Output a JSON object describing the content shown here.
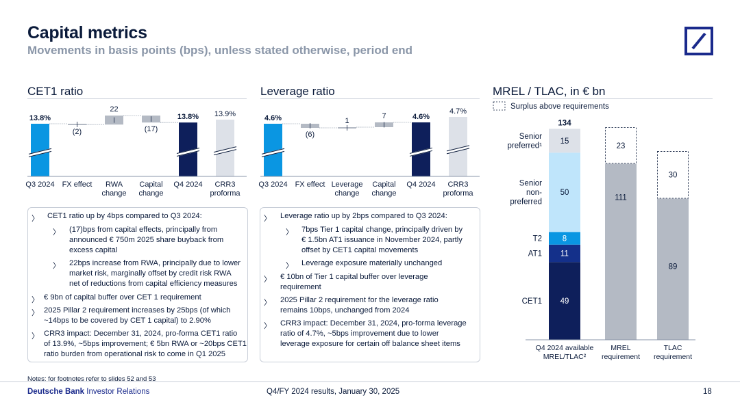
{
  "header": {
    "title": "Capital metrics",
    "subtitle": "Movements in basis points (bps), unless stated otherwise, period end"
  },
  "colors": {
    "dark_navy": "#0e1f5b",
    "bright_blue": "#0a96e2",
    "light_blue": "#bfe5fb",
    "gray": "#b4bac4",
    "light_gray": "#dde1e8"
  },
  "sections": {
    "cet1_title": "CET1 ratio",
    "leverage_title": "Leverage ratio",
    "mrel_title": "MREL / TLAC, in € bn"
  },
  "chart_data": [
    {
      "id": "cet1",
      "type": "bar",
      "subtype": "waterfall",
      "title": "CET1 ratio",
      "categories": [
        "Q3 2024",
        "FX effect",
        "RWA change",
        "Capital change",
        "Q4 2024",
        "CRR3 proforma"
      ],
      "category_lines": [
        [
          "Q3 2024"
        ],
        [
          "FX effect"
        ],
        [
          "RWA",
          "change"
        ],
        [
          "Capital",
          "change"
        ],
        [
          "Q4 2024"
        ],
        [
          "CRR3",
          "proforma"
        ]
      ],
      "values_bps": [
        1380,
        -2,
        22,
        -17,
        1380,
        1390
      ],
      "labels": [
        "13.8%",
        "(2)",
        "22",
        "(17)",
        "13.8%",
        "13.9%"
      ],
      "kinds": [
        "total",
        "delta",
        "delta",
        "delta",
        "total",
        "proforma"
      ]
    },
    {
      "id": "leverage",
      "type": "bar",
      "subtype": "waterfall",
      "title": "Leverage ratio",
      "categories": [
        "Q3 2024",
        "FX effect",
        "Leverage change",
        "Capital change",
        "Q4 2024",
        "CRR3 proforma"
      ],
      "category_lines": [
        [
          "Q3 2024"
        ],
        [
          "FX effect"
        ],
        [
          "Leverage",
          "change"
        ],
        [
          "Capital",
          "change"
        ],
        [
          "Q4 2024"
        ],
        [
          "CRR3",
          "proforma"
        ]
      ],
      "values_bps": [
        460,
        -6,
        1,
        7,
        460,
        470
      ],
      "labels": [
        "4.6%",
        "(6)",
        "1",
        "7",
        "4.6%",
        "4.7%"
      ],
      "kinds": [
        "total",
        "delta",
        "delta",
        "delta",
        "total",
        "proforma"
      ]
    },
    {
      "id": "mrel",
      "type": "bar",
      "subtype": "stacked",
      "title": "MREL / TLAC, in € bn",
      "legend": "Surplus above requirements",
      "categories": [
        "Q4 2024 available MREL/TLAC²",
        "MREL requirement",
        "TLAC requirement"
      ],
      "category_lines": [
        [
          "Q4 2024 available",
          "MREL/TLAC²"
        ],
        [
          "MREL",
          "requirement"
        ],
        [
          "TLAC",
          "requirement"
        ]
      ],
      "total_label": "134",
      "series": [
        {
          "name": "CET1",
          "values": [
            49,
            null,
            null
          ]
        },
        {
          "name": "AT1",
          "values": [
            11,
            null,
            null
          ]
        },
        {
          "name": "T2",
          "values": [
            8,
            null,
            null
          ]
        },
        {
          "name": "Senior non-preferred",
          "values": [
            50,
            null,
            null
          ]
        },
        {
          "name": "Senior preferred¹",
          "values": [
            15,
            null,
            null
          ]
        },
        {
          "name": "Requirement",
          "values": [
            null,
            111,
            89
          ]
        },
        {
          "name": "Surplus above requirements",
          "values": [
            null,
            23,
            30
          ]
        }
      ],
      "row_labels": [
        [
          "CET1"
        ],
        [
          "AT1"
        ],
        [
          "T2"
        ],
        [
          "Senior",
          "non-",
          "preferred"
        ],
        [
          "Senior",
          "preferred¹"
        ]
      ],
      "ylim": [
        0,
        134
      ]
    }
  ],
  "cet1_box": {
    "b1": [
      "CET1 ratio up by 4bps compared to Q3 2024:"
    ],
    "b1a": [
      "(17)bps from capital effects, principally from",
      "announced € 750m 2025 share buyback from",
      "excess capital"
    ],
    "b1b": [
      "22bps increase from RWA, principally due to lower",
      "market risk, marginally offset by credit risk RWA",
      "net of reductions from capital efficiency measures"
    ],
    "b2": [
      "€ 9bn of capital buffer over CET 1 requirement"
    ],
    "b3": [
      "2025 Pillar 2 requirement increases by 25bps (of which",
      "~14bps to be covered by CET 1 capital) to 2.90%"
    ],
    "b4": [
      "CRR3 impact: December 31, 2024, pro-forma CET1 ratio",
      "of 13.9%, ~5bps improvement; € 5bn RWA or ~20bps CET1",
      "ratio burden from operational risk to come in Q1 2025"
    ]
  },
  "lev_box": {
    "b1": [
      "Leverage ratio up by 2bps compared to Q3 2024:"
    ],
    "b1a": [
      "7bps Tier 1 capital change, principally driven by",
      "€ 1.5bn AT1 issuance in November 2024, partly",
      "offset by CET1 capital movements"
    ],
    "b1b": [
      "Leverage exposure materially unchanged"
    ],
    "b2": [
      "€ 10bn of Tier 1 capital buffer over leverage",
      "requirement"
    ],
    "b3": [
      "2025 Pillar 2 requirement for the leverage ratio",
      "remains 10bps, unchanged from 2024"
    ],
    "b4": [
      "CRR3 impact: December 31, 2024, pro-forma leverage",
      "ratio of 4.7%, ~5bps improvement due to lower",
      "leverage exposure for certain off balance sheet items"
    ]
  },
  "bullet_glyph": "〉",
  "footer": {
    "note": "Notes: for footnotes refer to slides 52 and 53",
    "brand_bold": "Deutsche Bank",
    "brand_rest": " Investor Relations",
    "center": "Q4/FY 2024 results, January 30, 2025",
    "page": "18"
  }
}
